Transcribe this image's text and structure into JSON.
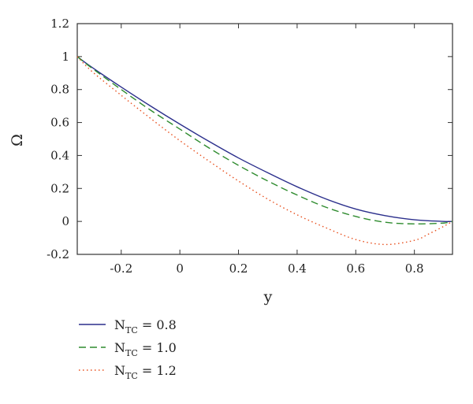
{
  "chart_data": {
    "type": "line",
    "xlabel": "y",
    "ylabel": "Ω",
    "xlim": [
      -0.35,
      0.93
    ],
    "ylim": [
      -0.2,
      1.2
    ],
    "xticks": [
      -0.2,
      0,
      0.2,
      0.4,
      0.6,
      0.8
    ],
    "xtick_labels": [
      "-0.2",
      "0",
      "0.2",
      "0.4",
      "0.6",
      "0.8"
    ],
    "yticks": [
      -0.2,
      0,
      0.2,
      0.4,
      0.6,
      0.8,
      1,
      1.2
    ],
    "ytick_labels": [
      "-0.2",
      "0",
      "0.2",
      "0.4",
      "0.6",
      "0.8",
      "1",
      "1.2"
    ],
    "grid": false,
    "legend_position": "below",
    "series": [
      {
        "name_main": "N",
        "name_sub": "TC",
        "name_rest": " = 0.8",
        "color": "#2b2f8c",
        "style": "solid",
        "x": [
          -0.35,
          -0.3,
          -0.2,
          -0.1,
          0,
          0.1,
          0.2,
          0.3,
          0.4,
          0.5,
          0.6,
          0.7,
          0.8,
          0.9,
          0.93
        ],
        "y": [
          1.0,
          0.935,
          0.815,
          0.7,
          0.59,
          0.485,
          0.385,
          0.295,
          0.21,
          0.135,
          0.075,
          0.035,
          0.01,
          0.0,
          0.0
        ]
      },
      {
        "name_main": "N",
        "name_sub": "TC",
        "name_rest": " = 1.0",
        "color": "#2e8b2e",
        "style": "dashed",
        "x": [
          -0.35,
          -0.3,
          -0.2,
          -0.1,
          0,
          0.1,
          0.2,
          0.3,
          0.4,
          0.5,
          0.6,
          0.7,
          0.8,
          0.9,
          0.93
        ],
        "y": [
          1.0,
          0.93,
          0.8,
          0.675,
          0.56,
          0.445,
          0.34,
          0.245,
          0.16,
          0.085,
          0.03,
          -0.005,
          -0.015,
          -0.01,
          0.0
        ]
      },
      {
        "name_main": "N",
        "name_sub": "TC",
        "name_rest": " = 1.2",
        "color": "#e8501e",
        "style": "dotted",
        "x": [
          -0.35,
          -0.3,
          -0.2,
          -0.1,
          0,
          0.1,
          0.2,
          0.3,
          0.4,
          0.5,
          0.6,
          0.7,
          0.8,
          0.85,
          0.9,
          0.93
        ],
        "y": [
          1.0,
          0.91,
          0.765,
          0.625,
          0.49,
          0.365,
          0.245,
          0.135,
          0.04,
          -0.04,
          -0.11,
          -0.14,
          -0.115,
          -0.075,
          -0.03,
          0.0
        ]
      }
    ]
  }
}
